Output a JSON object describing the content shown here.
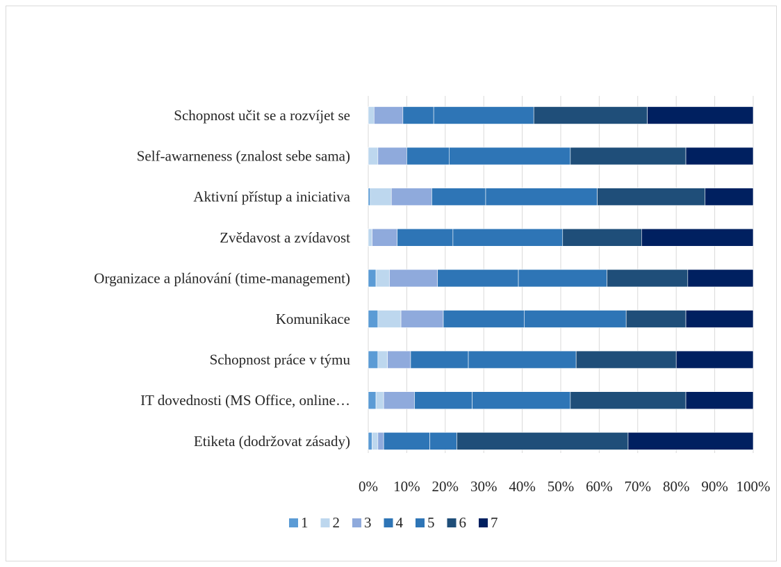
{
  "chart_data": {
    "type": "bar",
    "orientation": "horizontal",
    "stacked": "percent",
    "title": "",
    "xlabel": "",
    "ylabel": "",
    "xlim": [
      0,
      100
    ],
    "x_ticks": [
      "0%",
      "10%",
      "20%",
      "30%",
      "40%",
      "50%",
      "60%",
      "70%",
      "80%",
      "90%",
      "100%"
    ],
    "grid": true,
    "legend_position": "bottom",
    "categories": [
      "Schopnost učit se a rozvíjet se",
      "Self-awarneness (znalost sebe sama)",
      "Aktivní přístup a iniciativa",
      "Zvědavost a zvídavost",
      "Organizace a plánování (time-management)",
      "Komunikace",
      "Schopnost práce v týmu",
      "IT dovednosti (MS Office, online…",
      "Etiketa (dodržovat zásady)"
    ],
    "series": [
      {
        "name": "1",
        "color": "#5b9bd5",
        "values": [
          0,
          0,
          0.5,
          0,
          2,
          2.5,
          2.5,
          2,
          1
        ]
      },
      {
        "name": "2",
        "color": "#bdd7ee",
        "values": [
          1.5,
          2.5,
          5.5,
          1,
          3.5,
          6,
          2.5,
          2,
          1.5
        ]
      },
      {
        "name": "3",
        "color": "#8faadc",
        "values": [
          7.5,
          7.5,
          10.5,
          6.5,
          12.5,
          11,
          6,
          8,
          1.5
        ]
      },
      {
        "name": "4",
        "color": "#2e75b6",
        "values": [
          8,
          11,
          14,
          14.5,
          21,
          21,
          15,
          15,
          12
        ]
      },
      {
        "name": "5",
        "color": "#2e75b6",
        "values": [
          26,
          31.5,
          29,
          28.5,
          23,
          26.5,
          28,
          25.5,
          7
        ]
      },
      {
        "name": "6",
        "color": "#1f4e79",
        "values": [
          29.5,
          30,
          28,
          20.5,
          21,
          15.5,
          26,
          30,
          44.5
        ]
      },
      {
        "name": "7",
        "color": "#002060",
        "values": [
          27.5,
          17.5,
          12.5,
          29,
          17,
          17.5,
          20,
          17.5,
          32.5
        ]
      }
    ]
  }
}
